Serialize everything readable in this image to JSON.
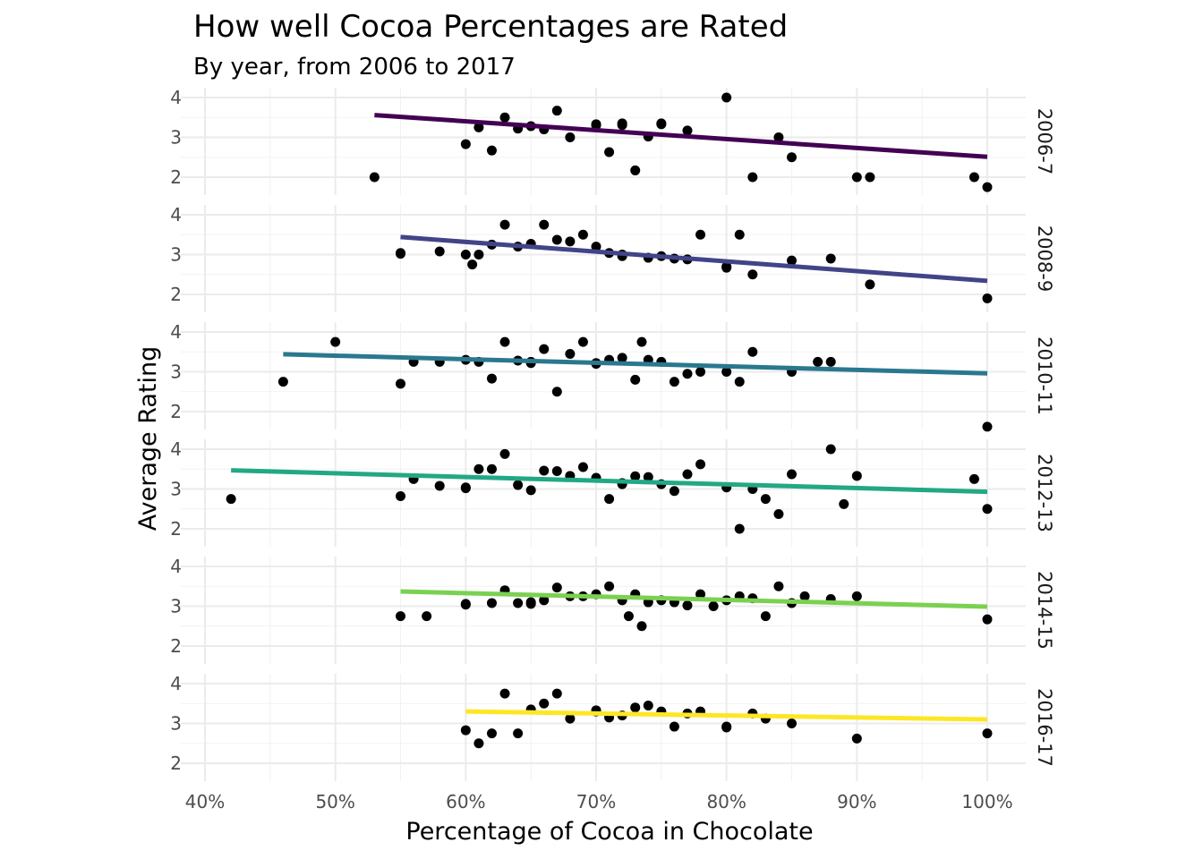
{
  "chart_data": {
    "type": "scatter",
    "title": "How well Cocoa Percentages are Rated",
    "subtitle": "By year, from 2006 to 2017",
    "xlabel": "Percentage of Cocoa in Chocolate",
    "ylabel": "Average Rating",
    "xlim": [
      40,
      100
    ],
    "ylim": [
      1.5,
      4.0
    ],
    "x_ticks": [
      40,
      50,
      60,
      70,
      80,
      90,
      100
    ],
    "x_tick_labels": [
      "40%",
      "50%",
      "60%",
      "70%",
      "80%",
      "90%",
      "100%"
    ],
    "y_ticks": [
      2,
      3,
      4
    ],
    "y_tick_labels": [
      "2",
      "3",
      "4"
    ],
    "grid": true,
    "legend": "none",
    "facets": [
      {
        "label": "2006-7",
        "color": "#440154",
        "trend": {
          "x": [
            53,
            100
          ],
          "y": [
            3.56,
            2.51
          ]
        },
        "points": [
          [
            53,
            2.0
          ],
          [
            60,
            2.83
          ],
          [
            61,
            3.25
          ],
          [
            62,
            2.67
          ],
          [
            63,
            3.5
          ],
          [
            64,
            3.22
          ],
          [
            65,
            3.28
          ],
          [
            66,
            3.2
          ],
          [
            67,
            3.67
          ],
          [
            68,
            3.0
          ],
          [
            70,
            3.33
          ],
          [
            70,
            3.3
          ],
          [
            71,
            2.63
          ],
          [
            72,
            3.35
          ],
          [
            72,
            3.31
          ],
          [
            73,
            2.17
          ],
          [
            74,
            3.02
          ],
          [
            75,
            3.35
          ],
          [
            75,
            3.33
          ],
          [
            77,
            3.17
          ],
          [
            80,
            4.0
          ],
          [
            82,
            2.0
          ],
          [
            84,
            3.0
          ],
          [
            85,
            2.5
          ],
          [
            90,
            2.0
          ],
          [
            91,
            2.0
          ],
          [
            99,
            2.0
          ],
          [
            100,
            1.75
          ]
        ]
      },
      {
        "label": "2008-9",
        "color": "#414487",
        "trend": {
          "x": [
            55,
            100
          ],
          "y": [
            3.44,
            2.34
          ]
        },
        "points": [
          [
            55,
            3.04
          ],
          [
            55,
            3.02
          ],
          [
            58,
            3.08
          ],
          [
            60,
            3.0
          ],
          [
            60.5,
            2.75
          ],
          [
            61,
            3.0
          ],
          [
            62,
            3.25
          ],
          [
            63,
            3.75
          ],
          [
            64,
            3.2
          ],
          [
            65,
            3.27
          ],
          [
            66,
            3.75
          ],
          [
            67,
            3.37
          ],
          [
            68,
            3.33
          ],
          [
            69,
            3.5
          ],
          [
            70,
            3.2
          ],
          [
            71,
            3.04
          ],
          [
            72,
            3.0
          ],
          [
            72,
            2.96
          ],
          [
            74,
            2.92
          ],
          [
            75,
            2.96
          ],
          [
            76,
            2.9
          ],
          [
            77,
            2.88
          ],
          [
            78,
            3.5
          ],
          [
            80,
            2.7
          ],
          [
            80,
            2.67
          ],
          [
            81,
            3.5
          ],
          [
            82,
            2.5
          ],
          [
            85,
            2.85
          ],
          [
            88,
            2.9
          ],
          [
            91,
            2.25
          ],
          [
            100,
            1.9
          ]
        ]
      },
      {
        "label": "2010-11",
        "color": "#2A788E",
        "trend": {
          "x": [
            46,
            100
          ],
          "y": [
            3.44,
            2.96
          ]
        },
        "points": [
          [
            46,
            2.75
          ],
          [
            50,
            3.75
          ],
          [
            55,
            2.7
          ],
          [
            56,
            3.25
          ],
          [
            58,
            3.25
          ],
          [
            60,
            3.3
          ],
          [
            61,
            3.25
          ],
          [
            62,
            2.83
          ],
          [
            63,
            3.75
          ],
          [
            64,
            3.28
          ],
          [
            65,
            3.25
          ],
          [
            65,
            3.22
          ],
          [
            66,
            3.57
          ],
          [
            67,
            2.5
          ],
          [
            68,
            3.45
          ],
          [
            69,
            3.75
          ],
          [
            70,
            3.22
          ],
          [
            70,
            3.2
          ],
          [
            71,
            3.3
          ],
          [
            72,
            3.35
          ],
          [
            73,
            2.8
          ],
          [
            73.5,
            3.75
          ],
          [
            74,
            3.3
          ],
          [
            75,
            3.25
          ],
          [
            76,
            2.75
          ],
          [
            77,
            2.95
          ],
          [
            78,
            3.0
          ],
          [
            80,
            3.0
          ],
          [
            81,
            2.75
          ],
          [
            82,
            3.5
          ],
          [
            85,
            3.0
          ],
          [
            87,
            3.25
          ],
          [
            88,
            3.25
          ],
          [
            100,
            1.62
          ]
        ]
      },
      {
        "label": "2012-13",
        "color": "#22A884",
        "trend": {
          "x": [
            42,
            100
          ],
          "y": [
            3.47,
            2.93
          ]
        },
        "points": [
          [
            42,
            2.75
          ],
          [
            55,
            2.82
          ],
          [
            56,
            3.25
          ],
          [
            58,
            3.08
          ],
          [
            60,
            3.04
          ],
          [
            60,
            3.02
          ],
          [
            61,
            3.5
          ],
          [
            62,
            3.5
          ],
          [
            63,
            3.88
          ],
          [
            64,
            3.1
          ],
          [
            65,
            2.97
          ],
          [
            66,
            3.46
          ],
          [
            67,
            3.45
          ],
          [
            68,
            3.33
          ],
          [
            69,
            3.55
          ],
          [
            70,
            3.28
          ],
          [
            71,
            2.75
          ],
          [
            72,
            3.15
          ],
          [
            72,
            3.12
          ],
          [
            73,
            3.32
          ],
          [
            74,
            3.3
          ],
          [
            75,
            3.12
          ],
          [
            76,
            2.95
          ],
          [
            77,
            3.37
          ],
          [
            78,
            3.62
          ],
          [
            80,
            3.04
          ],
          [
            81,
            2.0
          ],
          [
            82,
            3.0
          ],
          [
            83,
            2.75
          ],
          [
            84,
            2.37
          ],
          [
            85,
            3.37
          ],
          [
            88,
            4.0
          ],
          [
            89,
            2.62
          ],
          [
            90,
            3.33
          ],
          [
            99,
            3.25
          ],
          [
            100,
            2.5
          ]
        ]
      },
      {
        "label": "2014-15",
        "color": "#7AD151",
        "trend": {
          "x": [
            55,
            100
          ],
          "y": [
            3.37,
            2.99
          ]
        },
        "points": [
          [
            55,
            2.75
          ],
          [
            57,
            2.75
          ],
          [
            60,
            3.06
          ],
          [
            60,
            3.04
          ],
          [
            62,
            3.08
          ],
          [
            63,
            3.4
          ],
          [
            64,
            3.08
          ],
          [
            65,
            3.1
          ],
          [
            65,
            3.06
          ],
          [
            66,
            3.15
          ],
          [
            67,
            3.47
          ],
          [
            68,
            3.25
          ],
          [
            69,
            3.25
          ],
          [
            70,
            3.3
          ],
          [
            71,
            3.5
          ],
          [
            72,
            3.15
          ],
          [
            72.5,
            2.75
          ],
          [
            73,
            3.3
          ],
          [
            73.5,
            2.5
          ],
          [
            74,
            3.1
          ],
          [
            75,
            3.15
          ],
          [
            76,
            3.1
          ],
          [
            77,
            3.02
          ],
          [
            78,
            3.3
          ],
          [
            79,
            3.0
          ],
          [
            80,
            3.15
          ],
          [
            81,
            3.25
          ],
          [
            82,
            3.2
          ],
          [
            83,
            2.75
          ],
          [
            84,
            3.5
          ],
          [
            85,
            3.08
          ],
          [
            86,
            3.25
          ],
          [
            88,
            3.18
          ],
          [
            90,
            3.25
          ],
          [
            100,
            2.67
          ]
        ]
      },
      {
        "label": "2016-17",
        "color": "#FDE725",
        "trend": {
          "x": [
            60,
            100
          ],
          "y": [
            3.3,
            3.1
          ]
        },
        "points": [
          [
            60,
            2.83
          ],
          [
            61,
            2.5
          ],
          [
            62,
            2.75
          ],
          [
            63,
            3.75
          ],
          [
            64,
            2.75
          ],
          [
            65,
            3.35
          ],
          [
            66,
            3.5
          ],
          [
            67,
            3.75
          ],
          [
            68,
            3.12
          ],
          [
            70,
            3.33
          ],
          [
            70,
            3.3
          ],
          [
            71,
            3.15
          ],
          [
            72,
            3.2
          ],
          [
            73,
            3.4
          ],
          [
            74,
            3.45
          ],
          [
            75,
            3.3
          ],
          [
            76,
            2.92
          ],
          [
            77,
            3.25
          ],
          [
            78,
            3.3
          ],
          [
            80,
            2.92
          ],
          [
            80,
            2.9
          ],
          [
            82,
            3.25
          ],
          [
            83,
            3.12
          ],
          [
            85,
            3.0
          ],
          [
            90,
            2.62
          ],
          [
            100,
            2.75
          ]
        ]
      }
    ]
  }
}
